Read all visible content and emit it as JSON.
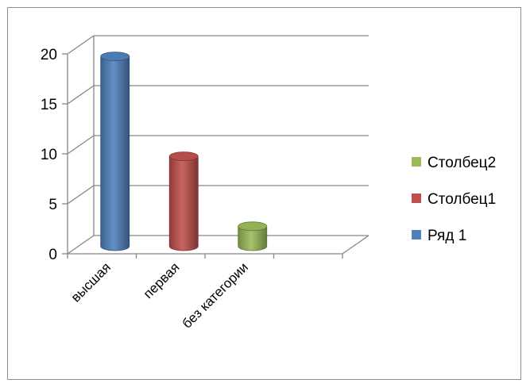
{
  "chart_data": {
    "type": "bar",
    "title": "",
    "xlabel": "",
    "ylabel": "",
    "categories": [
      "высшая",
      "первая",
      "без категории",
      ""
    ],
    "series": [
      {
        "name": "Ряд 1",
        "color": "#4f81bd",
        "values": [
          19,
          null,
          null,
          null
        ]
      },
      {
        "name": "Столбец1",
        "color": "#c0504d",
        "values": [
          null,
          9,
          null,
          null
        ]
      },
      {
        "name": "Столбец2",
        "color": "#9bbb59",
        "values": [
          null,
          null,
          2,
          null
        ]
      }
    ],
    "yticks": [
      0,
      5,
      10,
      15,
      20
    ],
    "ylim": [
      0,
      20
    ],
    "grid": true,
    "legend": "right",
    "legend_order": [
      "Столбец2",
      "Столбец1",
      "Ряд 1"
    ],
    "bar_shape": "3d-cylinder"
  }
}
